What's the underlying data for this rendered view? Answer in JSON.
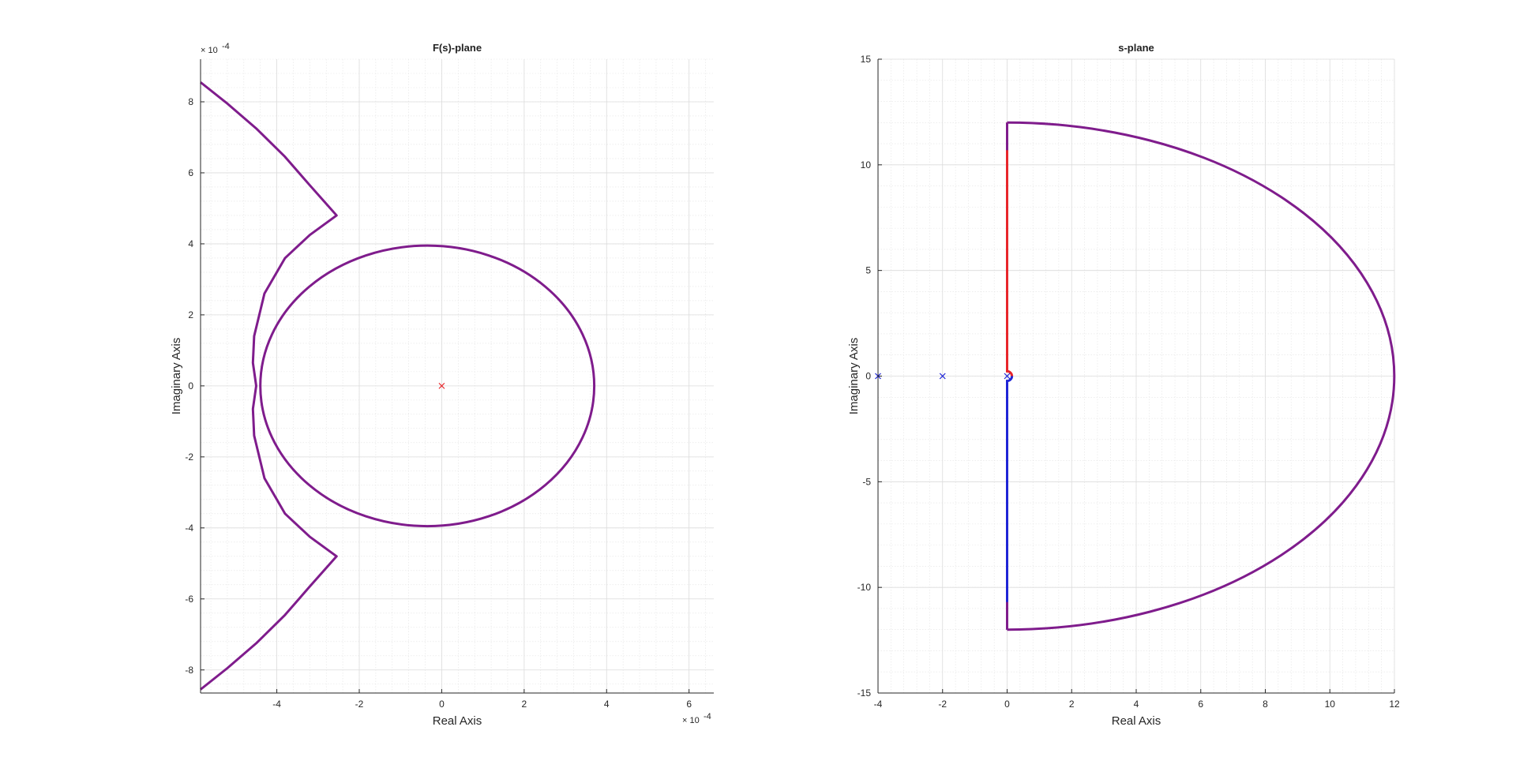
{
  "chart_data": [
    {
      "type": "line",
      "title": "F(s)-plane",
      "xlabel": "Real Axis",
      "ylabel": "Imaginary Axis",
      "scale_exponent_text": {
        "base": "× 10",
        "exp": "-4"
      },
      "xlim": [
        -5.85,
        6.6
      ],
      "ylim": [
        -8.65,
        9.2
      ],
      "xticks": [
        -4,
        -2,
        0,
        2,
        4,
        6
      ],
      "xtick_labels": [
        "-4",
        "-2",
        "0",
        "2",
        "4",
        "6"
      ],
      "yticks": [
        -8,
        -6,
        -4,
        -2,
        0,
        2,
        4,
        6,
        8
      ],
      "ytick_labels": [
        "-8",
        "-6",
        "-4",
        "-2",
        "0",
        "2",
        "4",
        "6",
        "8"
      ],
      "grid": true,
      "minor_grid": true,
      "series": [
        {
          "color": "#7f1c8c",
          "points": [
            [
              -5.85,
              8.55
            ],
            [
              -5.2,
              7.95
            ],
            [
              -4.5,
              7.25
            ],
            [
              -3.8,
              6.45
            ],
            [
              -3.2,
              5.65
            ],
            [
              -2.55,
              4.8
            ],
            [
              -3.2,
              4.25
            ],
            [
              -3.8,
              3.6
            ],
            [
              -4.3,
              2.6
            ],
            [
              -4.55,
              1.4
            ],
            [
              -4.58,
              0.65
            ],
            [
              -4.5,
              0.0
            ],
            [
              -4.58,
              -0.65
            ],
            [
              -4.55,
              -1.4
            ],
            [
              -4.3,
              -2.6
            ],
            [
              -3.8,
              -3.6
            ],
            [
              -3.2,
              -4.25
            ],
            [
              -2.55,
              -4.8
            ],
            [
              -3.2,
              -5.65
            ],
            [
              -3.8,
              -6.45
            ],
            [
              -4.5,
              -7.25
            ],
            [
              -5.2,
              -7.95
            ],
            [
              -5.85,
              -8.55
            ]
          ]
        },
        {
          "color": "#7f1c8c",
          "center": [
            -0.35,
            0
          ],
          "radius": [
            4.05,
            3.95
          ]
        }
      ],
      "markers": [
        {
          "x": 0,
          "y": 0,
          "symbol": "x",
          "color": "#e8262b"
        }
      ]
    },
    {
      "type": "line",
      "title": "s-plane",
      "xlabel": "Real Axis",
      "ylabel": "Imaginary Axis",
      "xlim": [
        -4,
        12
      ],
      "ylim": [
        -15,
        15
      ],
      "xticks": [
        -4,
        -2,
        0,
        2,
        4,
        6,
        8,
        10,
        12
      ],
      "xtick_labels": [
        "-4",
        "-2",
        "0",
        "2",
        "4",
        "6",
        "8",
        "10",
        "12"
      ],
      "yticks": [
        -15,
        -10,
        -5,
        0,
        5,
        10,
        15
      ],
      "ytick_labels": [
        "-15",
        "-10",
        "-5",
        "0",
        "5",
        "10",
        "15"
      ],
      "grid": true,
      "minor_grid": true,
      "contour": {
        "top_y": 12,
        "bottom_y": -12,
        "x0": 0,
        "arc_peak_x": 12,
        "indent_radius": 0.15,
        "upper_color": "#e8262b",
        "lower_color": "#1f25d6",
        "arc_color": "#7f1c8c"
      },
      "markers": [
        {
          "x": -4,
          "y": 0,
          "symbol": "x",
          "color": "#1f25d6"
        },
        {
          "x": -2,
          "y": 0,
          "symbol": "x",
          "color": "#1f25d6"
        },
        {
          "x": 0,
          "y": 0,
          "symbol": "x",
          "color": "#1f25d6"
        }
      ]
    }
  ]
}
